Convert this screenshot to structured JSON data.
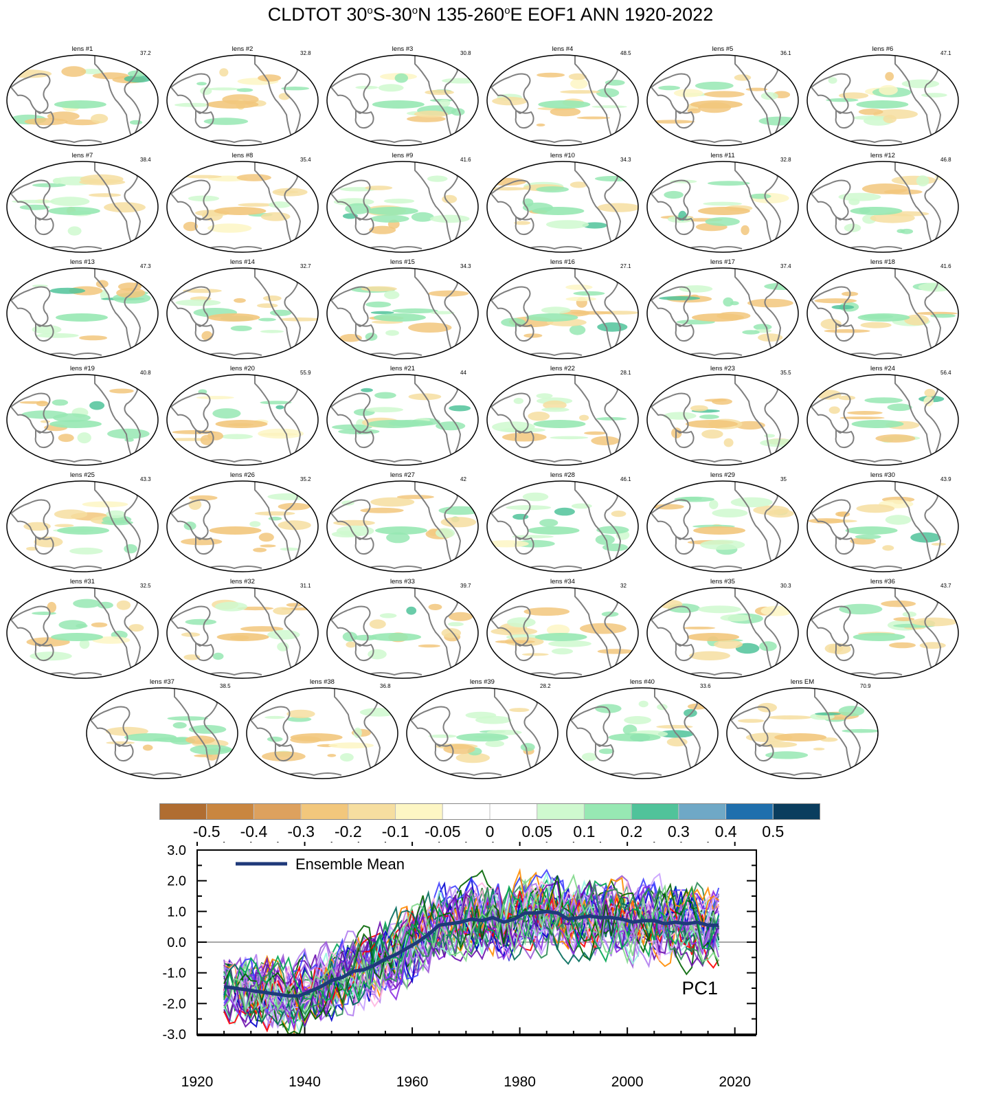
{
  "title": {
    "var": "CLDTOT",
    "lat1": "30",
    "deg": "o",
    "lat1_hemi": "S-30",
    "lat2_hemi": "N 135-260",
    "rest": "E EOF1 ANN 1920-2022"
  },
  "panels": [
    {
      "label": "lens #1",
      "pct": "37.2"
    },
    {
      "label": "lens #2",
      "pct": "32.8"
    },
    {
      "label": "lens #3",
      "pct": "30.8"
    },
    {
      "label": "lens #4",
      "pct": "48.5"
    },
    {
      "label": "lens #5",
      "pct": "36.1"
    },
    {
      "label": "lens #6",
      "pct": "47.1"
    },
    {
      "label": "lens #7",
      "pct": "38.4"
    },
    {
      "label": "lens #8",
      "pct": "35.4"
    },
    {
      "label": "lens #9",
      "pct": "41.6"
    },
    {
      "label": "lens #10",
      "pct": "34.3"
    },
    {
      "label": "lens #11",
      "pct": "32.8"
    },
    {
      "label": "lens #12",
      "pct": "46.8"
    },
    {
      "label": "lens #13",
      "pct": "47.3"
    },
    {
      "label": "lens #14",
      "pct": "32.7"
    },
    {
      "label": "lens #15",
      "pct": "34.3"
    },
    {
      "label": "lens #16",
      "pct": "27.1"
    },
    {
      "label": "lens #17",
      "pct": "37.4"
    },
    {
      "label": "lens #18",
      "pct": "41.6"
    },
    {
      "label": "lens #19",
      "pct": "40.8"
    },
    {
      "label": "lens #20",
      "pct": "55.9"
    },
    {
      "label": "lens #21",
      "pct": "44"
    },
    {
      "label": "lens #22",
      "pct": "28.1"
    },
    {
      "label": "lens #23",
      "pct": "35.5"
    },
    {
      "label": "lens #24",
      "pct": "56.4"
    },
    {
      "label": "lens #25",
      "pct": "43.3"
    },
    {
      "label": "lens #26",
      "pct": "35.2"
    },
    {
      "label": "lens #27",
      "pct": "42"
    },
    {
      "label": "lens #28",
      "pct": "46.1"
    },
    {
      "label": "lens #29",
      "pct": "35"
    },
    {
      "label": "lens #30",
      "pct": "43.9"
    },
    {
      "label": "lens #31",
      "pct": "32.5"
    },
    {
      "label": "lens #32",
      "pct": "31.1"
    },
    {
      "label": "lens #33",
      "pct": "39.7"
    },
    {
      "label": "lens #34",
      "pct": "32"
    },
    {
      "label": "lens #35",
      "pct": "30.3"
    },
    {
      "label": "lens #36",
      "pct": "43.7"
    },
    {
      "label": "lens #37",
      "pct": "38.5"
    },
    {
      "label": "lens #38",
      "pct": "36.8"
    },
    {
      "label": "lens #39",
      "pct": "28.2"
    },
    {
      "label": "lens #40",
      "pct": "33.6"
    },
    {
      "label": "lens EM",
      "pct": "70.9"
    }
  ],
  "colorbar": {
    "colors": [
      "#b06d31",
      "#c98640",
      "#dda15e",
      "#f2c77c",
      "#f6dea0",
      "#fdf6c4",
      "#ffffff",
      "#ffffff",
      "#cff9cf",
      "#97e8b3",
      "#50c39a",
      "#6fa8c6",
      "#1f6fad",
      "#0a3d5e"
    ],
    "labels": [
      "-0.5",
      "-0.4",
      "-0.3",
      "-0.2",
      "-0.1",
      "-0.05",
      "0",
      "0.05",
      "0.1",
      "0.2",
      "0.3",
      "0.4",
      "0.5"
    ]
  },
  "chart_data": {
    "type": "line",
    "label": "PC1",
    "legend": "Ensemble Mean",
    "xlim": [
      1920,
      2024
    ],
    "ylim": [
      -3.0,
      3.0
    ],
    "xticks": [
      "1920",
      "1940",
      "1960",
      "1980",
      "2000",
      "2020"
    ],
    "yticks": [
      "3.0",
      "2.0",
      "1.0",
      "0.0",
      "-1.0",
      "-2.0",
      "-3.0"
    ],
    "ensemble_mean": {
      "x": [
        1925,
        1927,
        1929,
        1931,
        1933,
        1935,
        1937,
        1939,
        1941,
        1943,
        1945,
        1947,
        1949,
        1951,
        1953,
        1955,
        1957,
        1959,
        1961,
        1963,
        1965,
        1967,
        1969,
        1971,
        1973,
        1975,
        1977,
        1979,
        1981,
        1983,
        1985,
        1987,
        1989,
        1991,
        1993,
        1995,
        1997,
        1999,
        2001,
        2003,
        2005,
        2007,
        2009,
        2011,
        2013,
        2015,
        2017
      ],
      "y": [
        -1.45,
        -1.5,
        -1.55,
        -1.6,
        -1.65,
        -1.7,
        -1.75,
        -1.75,
        -1.6,
        -1.45,
        -1.25,
        -1.15,
        -0.95,
        -0.9,
        -0.75,
        -0.55,
        -0.4,
        -0.2,
        0.0,
        0.25,
        0.55,
        0.6,
        0.65,
        0.75,
        0.7,
        0.8,
        0.65,
        0.75,
        0.95,
        0.95,
        1.0,
        0.95,
        0.75,
        0.8,
        0.85,
        0.8,
        0.8,
        0.75,
        0.65,
        0.7,
        0.7,
        0.6,
        0.65,
        0.6,
        0.65,
        0.55,
        0.55
      ]
    },
    "member_colors": [
      "#8a2be2",
      "#9b59d6",
      "#b07cf0",
      "#6a0dad",
      "#006400",
      "#2e8b57",
      "#00a651",
      "#7fd88a",
      "#0000cd",
      "#3f3fff",
      "#ff0000",
      "#ff8c00",
      "#98f5e1",
      "#ffb6e1",
      "#c9a0ff",
      "#006a5a"
    ]
  }
}
